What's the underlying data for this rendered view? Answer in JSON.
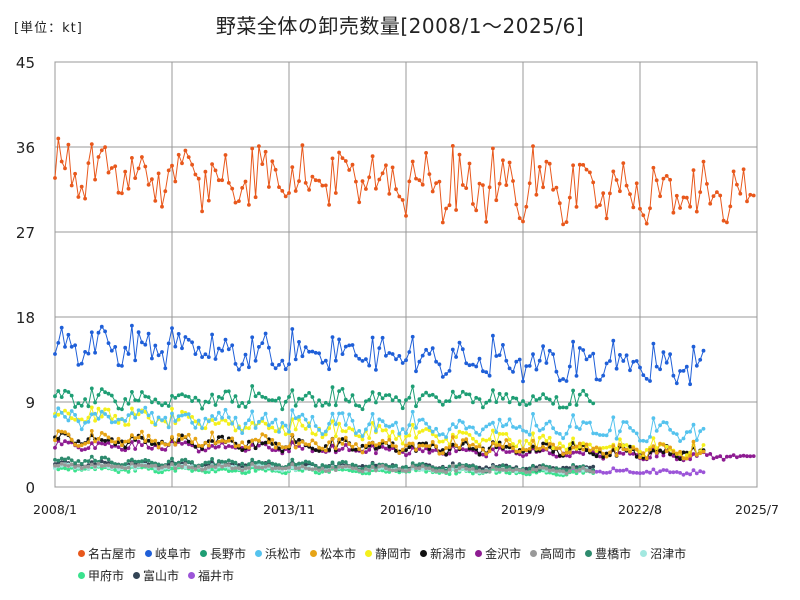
{
  "header": {
    "unit": "[単位：kt]",
    "title": "野菜全体の卸売数量[2008/1～2025/6]"
  },
  "chart_data": {
    "type": "line",
    "title": "野菜全体の卸売数量[2008/1～2025/6]",
    "unit": "[単位：kt]",
    "x_ticks": [
      "2008/1",
      "2010/12",
      "2013/11",
      "2016/10",
      "2019/9",
      "2022/8",
      "2025/7"
    ],
    "y_ticks": [
      "0",
      "9",
      "18",
      "27",
      "36",
      "45"
    ],
    "ylim": [
      0,
      45
    ],
    "x_range": [
      "2008/1",
      "2025/7"
    ],
    "grid": true,
    "legend_position": "bottom",
    "series": [
      {
        "name": "名古屋市",
        "color": "#E8581C",
        "start": "2008/1",
        "end": "2025/6",
        "base": 33.5,
        "amplitude": 3.5,
        "trend_end": -3.0
      },
      {
        "name": "岐阜市",
        "color": "#1F5FD8",
        "start": "2008/1",
        "end": "2024/3",
        "base": 15.0,
        "amplitude": 2.0,
        "trend_end": -2.5
      },
      {
        "name": "長野市",
        "color": "#1E9E74",
        "start": "2008/1",
        "end": "2021/6",
        "base": 9.3,
        "amplitude": 1.0,
        "trend_end": 0.0
      },
      {
        "name": "浜松市",
        "color": "#55C3EE",
        "start": "2008/1",
        "end": "2024/3",
        "base": 7.5,
        "amplitude": 1.2,
        "trend_end": -1.8
      },
      {
        "name": "松本市",
        "color": "#E6A417",
        "start": "2008/1",
        "end": "2024/3",
        "base": 5.2,
        "amplitude": 0.8,
        "trend_end": -1.5
      },
      {
        "name": "静岡市",
        "color": "#F4F01C",
        "start": "2008/1",
        "end": "2024/3",
        "base": 7.8,
        "amplitude": 0.9,
        "trend_end": -4.2
      },
      {
        "name": "新潟市",
        "color": "#111111",
        "start": "2008/1",
        "end": "2024/3",
        "base": 5.0,
        "amplitude": 0.7,
        "trend_end": -1.4
      },
      {
        "name": "金沢市",
        "color": "#8E1C92",
        "start": "2008/1",
        "end": "2025/6",
        "base": 4.5,
        "amplitude": 0.5,
        "trend_end": -1.3
      },
      {
        "name": "高岡市",
        "color": "#999999",
        "start": "2008/1",
        "end": "2021/6",
        "base": 2.3,
        "amplitude": 0.3,
        "trend_end": -0.6
      },
      {
        "name": "豊橋市",
        "color": "#2E8B6E",
        "start": "2008/1",
        "end": "2021/6",
        "base": 2.8,
        "amplitude": 0.4,
        "trend_end": -1.0
      },
      {
        "name": "沼津市",
        "color": "#A3E8E0",
        "start": "2008/1",
        "end": "2021/6",
        "base": 2.2,
        "amplitude": 0.3,
        "trend_end": -0.5
      },
      {
        "name": "甲府市",
        "color": "#3BE28E",
        "start": "2008/1",
        "end": "2021/6",
        "base": 1.9,
        "amplitude": 0.3,
        "trend_end": -0.4
      },
      {
        "name": "富山市",
        "color": "#334455",
        "start": "2008/1",
        "end": "2021/6",
        "base": 2.5,
        "amplitude": 0.3,
        "trend_end": -0.5
      },
      {
        "name": "福井市",
        "color": "#9C55D8",
        "start": "2019/10",
        "end": "2024/3",
        "base": 1.8,
        "amplitude": 0.25,
        "trend_end": -0.3
      }
    ]
  }
}
